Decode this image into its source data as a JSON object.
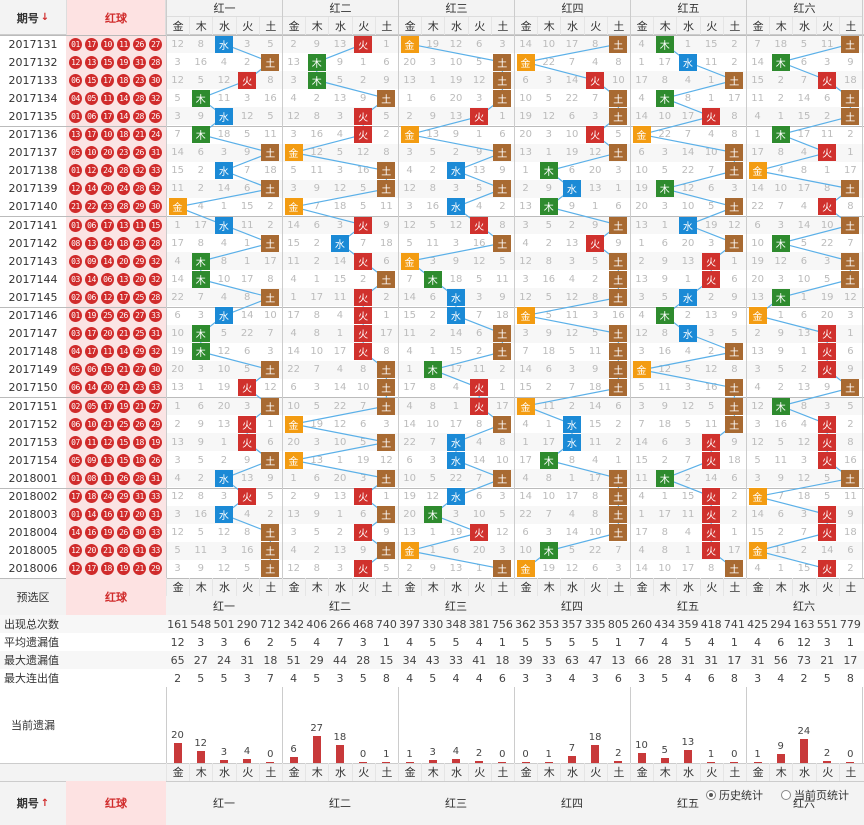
{
  "header": {
    "issue_label": "期号",
    "sort_icon": "arrow-down",
    "red_label": "红球",
    "groups": [
      "红一",
      "红二",
      "红三",
      "红四",
      "红五",
      "红六"
    ],
    "elements": [
      "金",
      "木",
      "水",
      "火",
      "土"
    ]
  },
  "footer": {
    "issue_label": "期号",
    "sort_icon": "arrow-up",
    "red_label": "红球",
    "preselect_label": "预选区",
    "preselect_red": "红球",
    "history_label": "历史统计",
    "current_label": "当前页统计"
  },
  "colors": {
    "金": "#f39c12",
    "木": "#2e8b2e",
    "水": "#1b8ad6",
    "火": "#d0312d",
    "土": "#a86a32"
  },
  "rows": [
    {
      "issue": "2017131",
      "balls": [
        "01",
        "17",
        "10",
        "11",
        "26",
        "27"
      ],
      "elem": [
        "水",
        "火",
        "金",
        "土",
        "木",
        "土"
      ]
    },
    {
      "issue": "2017132",
      "balls": [
        "12",
        "13",
        "15",
        "19",
        "31",
        "28"
      ],
      "elem": [
        "土",
        "木",
        "土",
        "金",
        "水",
        "木"
      ]
    },
    {
      "issue": "2017133",
      "balls": [
        "06",
        "15",
        "17",
        "18",
        "23",
        "30"
      ],
      "elem": [
        "火",
        "木",
        "土",
        "火",
        "土",
        "火"
      ]
    },
    {
      "issue": "2017134",
      "balls": [
        "04",
        "05",
        "11",
        "14",
        "28",
        "32"
      ],
      "elem": [
        "木",
        "土",
        "土",
        "土",
        "木",
        "土"
      ]
    },
    {
      "issue": "2017135",
      "balls": [
        "01",
        "06",
        "17",
        "14",
        "28",
        "26"
      ],
      "elem": [
        "水",
        "火",
        "火",
        "土",
        "火",
        "土"
      ]
    },
    {
      "issue": "2017136",
      "balls": [
        "13",
        "17",
        "10",
        "18",
        "21",
        "24"
      ],
      "elem": [
        "木",
        "火",
        "金",
        "火",
        "金",
        "木"
      ]
    },
    {
      "issue": "2017137",
      "balls": [
        "05",
        "10",
        "20",
        "23",
        "26",
        "31"
      ],
      "elem": [
        "土",
        "金",
        "土",
        "土",
        "土",
        "火"
      ]
    },
    {
      "issue": "2017138",
      "balls": [
        "01",
        "12",
        "24",
        "28",
        "32",
        "33"
      ],
      "elem": [
        "水",
        "土",
        "水",
        "木",
        "土",
        "金"
      ]
    },
    {
      "issue": "2017139",
      "balls": [
        "12",
        "14",
        "20",
        "24",
        "28",
        "32"
      ],
      "elem": [
        "土",
        "土",
        "土",
        "水",
        "木",
        "土"
      ]
    },
    {
      "issue": "2017140",
      "balls": [
        "21",
        "22",
        "23",
        "28",
        "29",
        "30"
      ],
      "elem": [
        "金",
        "金",
        "水",
        "木",
        "土",
        "火"
      ]
    },
    {
      "issue": "2017141",
      "balls": [
        "01",
        "06",
        "17",
        "13",
        "11",
        "15"
      ],
      "elem": [
        "水",
        "火",
        "火",
        "土",
        "水",
        "土"
      ]
    },
    {
      "issue": "2017142",
      "balls": [
        "08",
        "13",
        "14",
        "18",
        "23",
        "28"
      ],
      "elem": [
        "土",
        "水",
        "土",
        "火",
        "土",
        "木"
      ]
    },
    {
      "issue": "2017143",
      "balls": [
        "03",
        "09",
        "14",
        "20",
        "29",
        "32"
      ],
      "elem": [
        "木",
        "火",
        "金",
        "土",
        "火",
        "土"
      ]
    },
    {
      "issue": "2017144",
      "balls": [
        "03",
        "14",
        "06",
        "13",
        "20",
        "32"
      ],
      "elem": [
        "木",
        "土",
        "木",
        "土",
        "火",
        "土"
      ]
    },
    {
      "issue": "2017145",
      "balls": [
        "02",
        "06",
        "12",
        "17",
        "25",
        "28"
      ],
      "elem": [
        "土",
        "火",
        "水",
        "土",
        "水",
        "木"
      ]
    },
    {
      "issue": "2017146",
      "balls": [
        "01",
        "19",
        "25",
        "26",
        "27",
        "33"
      ],
      "elem": [
        "水",
        "火",
        "水",
        "金",
        "木",
        "金"
      ]
    },
    {
      "issue": "2017147",
      "balls": [
        "03",
        "17",
        "20",
        "21",
        "25",
        "31"
      ],
      "elem": [
        "木",
        "火",
        "土",
        "土",
        "水",
        "火"
      ]
    },
    {
      "issue": "2017148",
      "balls": [
        "04",
        "17",
        "11",
        "14",
        "29",
        "32"
      ],
      "elem": [
        "木",
        "火",
        "土",
        "土",
        "土",
        "火"
      ]
    },
    {
      "issue": "2017149",
      "balls": [
        "05",
        "06",
        "15",
        "21",
        "27",
        "30"
      ],
      "elem": [
        "土",
        "土",
        "木",
        "土",
        "金",
        "火"
      ]
    },
    {
      "issue": "2017150",
      "balls": [
        "06",
        "14",
        "20",
        "21",
        "23",
        "33"
      ],
      "elem": [
        "火",
        "土",
        "火",
        "土",
        "土",
        "土"
      ]
    },
    {
      "issue": "2017151",
      "balls": [
        "02",
        "05",
        "17",
        "19",
        "21",
        "27"
      ],
      "elem": [
        "土",
        "土",
        "火",
        "金",
        "土",
        "木"
      ]
    },
    {
      "issue": "2017152",
      "balls": [
        "06",
        "10",
        "21",
        "25",
        "26",
        "29"
      ],
      "elem": [
        "火",
        "金",
        "土",
        "水",
        "土",
        "火"
      ]
    },
    {
      "issue": "2017153",
      "balls": [
        "07",
        "11",
        "12",
        "15",
        "18",
        "19"
      ],
      "elem": [
        "火",
        "土",
        "水",
        "水",
        "火",
        "火"
      ]
    },
    {
      "issue": "2017154",
      "balls": [
        "05",
        "09",
        "13",
        "15",
        "18",
        "26"
      ],
      "elem": [
        "土",
        "金",
        "水",
        "木",
        "火",
        "火"
      ]
    },
    {
      "issue": "2018001",
      "balls": [
        "01",
        "08",
        "11",
        "26",
        "28",
        "31"
      ],
      "elem": [
        "水",
        "土",
        "土",
        "土",
        "木",
        "土"
      ]
    },
    {
      "issue": "2018002",
      "balls": [
        "17",
        "18",
        "24",
        "29",
        "31",
        "33"
      ],
      "elem": [
        "火",
        "火",
        "水",
        "土",
        "火",
        "金"
      ]
    },
    {
      "issue": "2018003",
      "balls": [
        "01",
        "14",
        "16",
        "17",
        "20",
        "31"
      ],
      "elem": [
        "水",
        "土",
        "木",
        "土",
        "火",
        "火"
      ]
    },
    {
      "issue": "2018004",
      "balls": [
        "14",
        "16",
        "19",
        "26",
        "30",
        "33"
      ],
      "elem": [
        "土",
        "火",
        "火",
        "土",
        "火",
        "火"
      ]
    },
    {
      "issue": "2018005",
      "balls": [
        "12",
        "20",
        "21",
        "28",
        "31",
        "33"
      ],
      "elem": [
        "土",
        "土",
        "金",
        "木",
        "火",
        "金"
      ]
    },
    {
      "issue": "2018006",
      "balls": [
        "12",
        "17",
        "18",
        "19",
        "21",
        "29"
      ],
      "elem": [
        "土",
        "火",
        "土",
        "金",
        "土",
        "火"
      ]
    }
  ],
  "miss_seed": [
    12,
    8,
    3,
    5,
    2,
    9,
    13,
    1,
    19,
    12,
    6,
    3,
    14,
    10,
    17,
    8,
    4,
    1,
    15,
    2,
    7,
    18,
    5,
    11,
    3,
    16,
    4,
    2,
    13,
    9,
    1,
    6,
    20,
    3,
    10,
    5,
    22,
    7,
    4,
    8,
    1,
    17,
    11,
    2,
    14,
    6,
    3,
    9,
    12,
    5
  ],
  "stats": {
    "labels": [
      "出现总次数",
      "平均遗漏值",
      "最大遗漏值",
      "最大连出值"
    ],
    "total": [
      161,
      548,
      501,
      290,
      712,
      342,
      406,
      266,
      468,
      740,
      397,
      330,
      348,
      381,
      756,
      362,
      353,
      357,
      335,
      805,
      260,
      434,
      359,
      418,
      741,
      425,
      294,
      163,
      551,
      779
    ],
    "avg": [
      12,
      3,
      3,
      6,
      2,
      5,
      4,
      7,
      3,
      1,
      4,
      5,
      5,
      4,
      1,
      5,
      5,
      5,
      5,
      1,
      7,
      4,
      5,
      4,
      1,
      4,
      6,
      12,
      3,
      1
    ],
    "max_miss": [
      65,
      27,
      24,
      31,
      18,
      51,
      29,
      44,
      28,
      15,
      34,
      43,
      33,
      41,
      18,
      39,
      33,
      63,
      47,
      13,
      66,
      28,
      31,
      31,
      17,
      31,
      56,
      73,
      21,
      17
    ],
    "max_streak": [
      2,
      5,
      5,
      3,
      7,
      4,
      5,
      3,
      5,
      8,
      4,
      5,
      4,
      4,
      6,
      3,
      3,
      4,
      3,
      6,
      3,
      5,
      4,
      6,
      8,
      3,
      4,
      2,
      5,
      8
    ]
  },
  "current_label": "当前遗漏",
  "current": [
    20,
    12,
    3,
    4,
    0,
    6,
    27,
    18,
    0,
    1,
    1,
    3,
    4,
    2,
    0,
    0,
    1,
    7,
    18,
    2,
    10,
    5,
    13,
    1,
    0,
    1,
    9,
    24,
    2,
    0
  ]
}
